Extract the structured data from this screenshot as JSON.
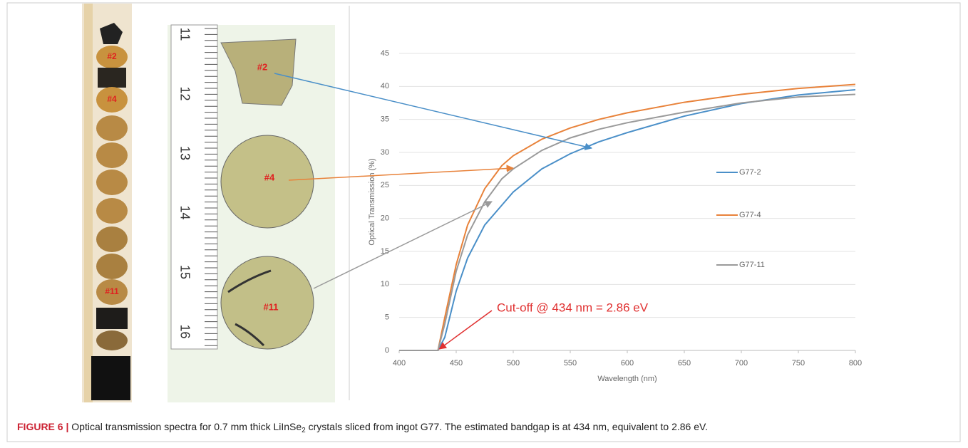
{
  "photo_labels": {
    "column": [
      "#2",
      "#4",
      "#11"
    ],
    "slices": [
      "#2",
      "#4",
      "#11"
    ],
    "ruler": [
      "11",
      "12",
      "13",
      "14",
      "15",
      "16"
    ]
  },
  "chart_data": {
    "type": "line",
    "x_label": "Wavelength (nm)",
    "y_label": "Optical Transmission (%)",
    "x": [
      400,
      430,
      434,
      440,
      450,
      460,
      475,
      490,
      500,
      525,
      550,
      575,
      600,
      650,
      700,
      750,
      800
    ],
    "series": [
      {
        "name": "G77-2",
        "color": "#4a8fc8",
        "values": [
          0,
          0,
          0,
          2,
          9,
          14,
          19,
          22,
          24,
          27.5,
          29.8,
          31.6,
          33,
          35.5,
          37.4,
          38.7,
          39.5
        ]
      },
      {
        "name": "G77-4",
        "color": "#e8823a",
        "values": [
          0,
          0,
          0,
          5,
          13,
          19,
          24.5,
          28,
          29.5,
          32,
          33.7,
          35,
          36,
          37.6,
          38.8,
          39.7,
          40.3
        ]
      },
      {
        "name": "G77-11",
        "color": "#9a9a9a",
        "values": [
          0,
          0,
          0,
          4,
          12,
          17.5,
          22.5,
          26,
          27.5,
          30.3,
          32.2,
          33.5,
          34.5,
          36.1,
          37.5,
          38.4,
          38.8
        ]
      }
    ],
    "xlim": [
      400,
      800
    ],
    "xticks": [
      400,
      450,
      500,
      550,
      600,
      650,
      700,
      750,
      800
    ],
    "ylim": [
      0,
      45
    ],
    "yticks": [
      0,
      5,
      10,
      15,
      20,
      25,
      30,
      35,
      40,
      45
    ],
    "grid": true,
    "annotation": "Cut-off @ 434 nm = 2.86 eV",
    "annotation_color": "#e03030"
  },
  "caption": {
    "label": "FIGURE 6 |",
    "text_before": " Optical transmission spectra for 0.7 mm thick LiInSe",
    "subscript": "2",
    "text_after": " crystals sliced from ingot G77. The estimated bandgap is at 434 nm, equivalent to 2.86 eV."
  }
}
